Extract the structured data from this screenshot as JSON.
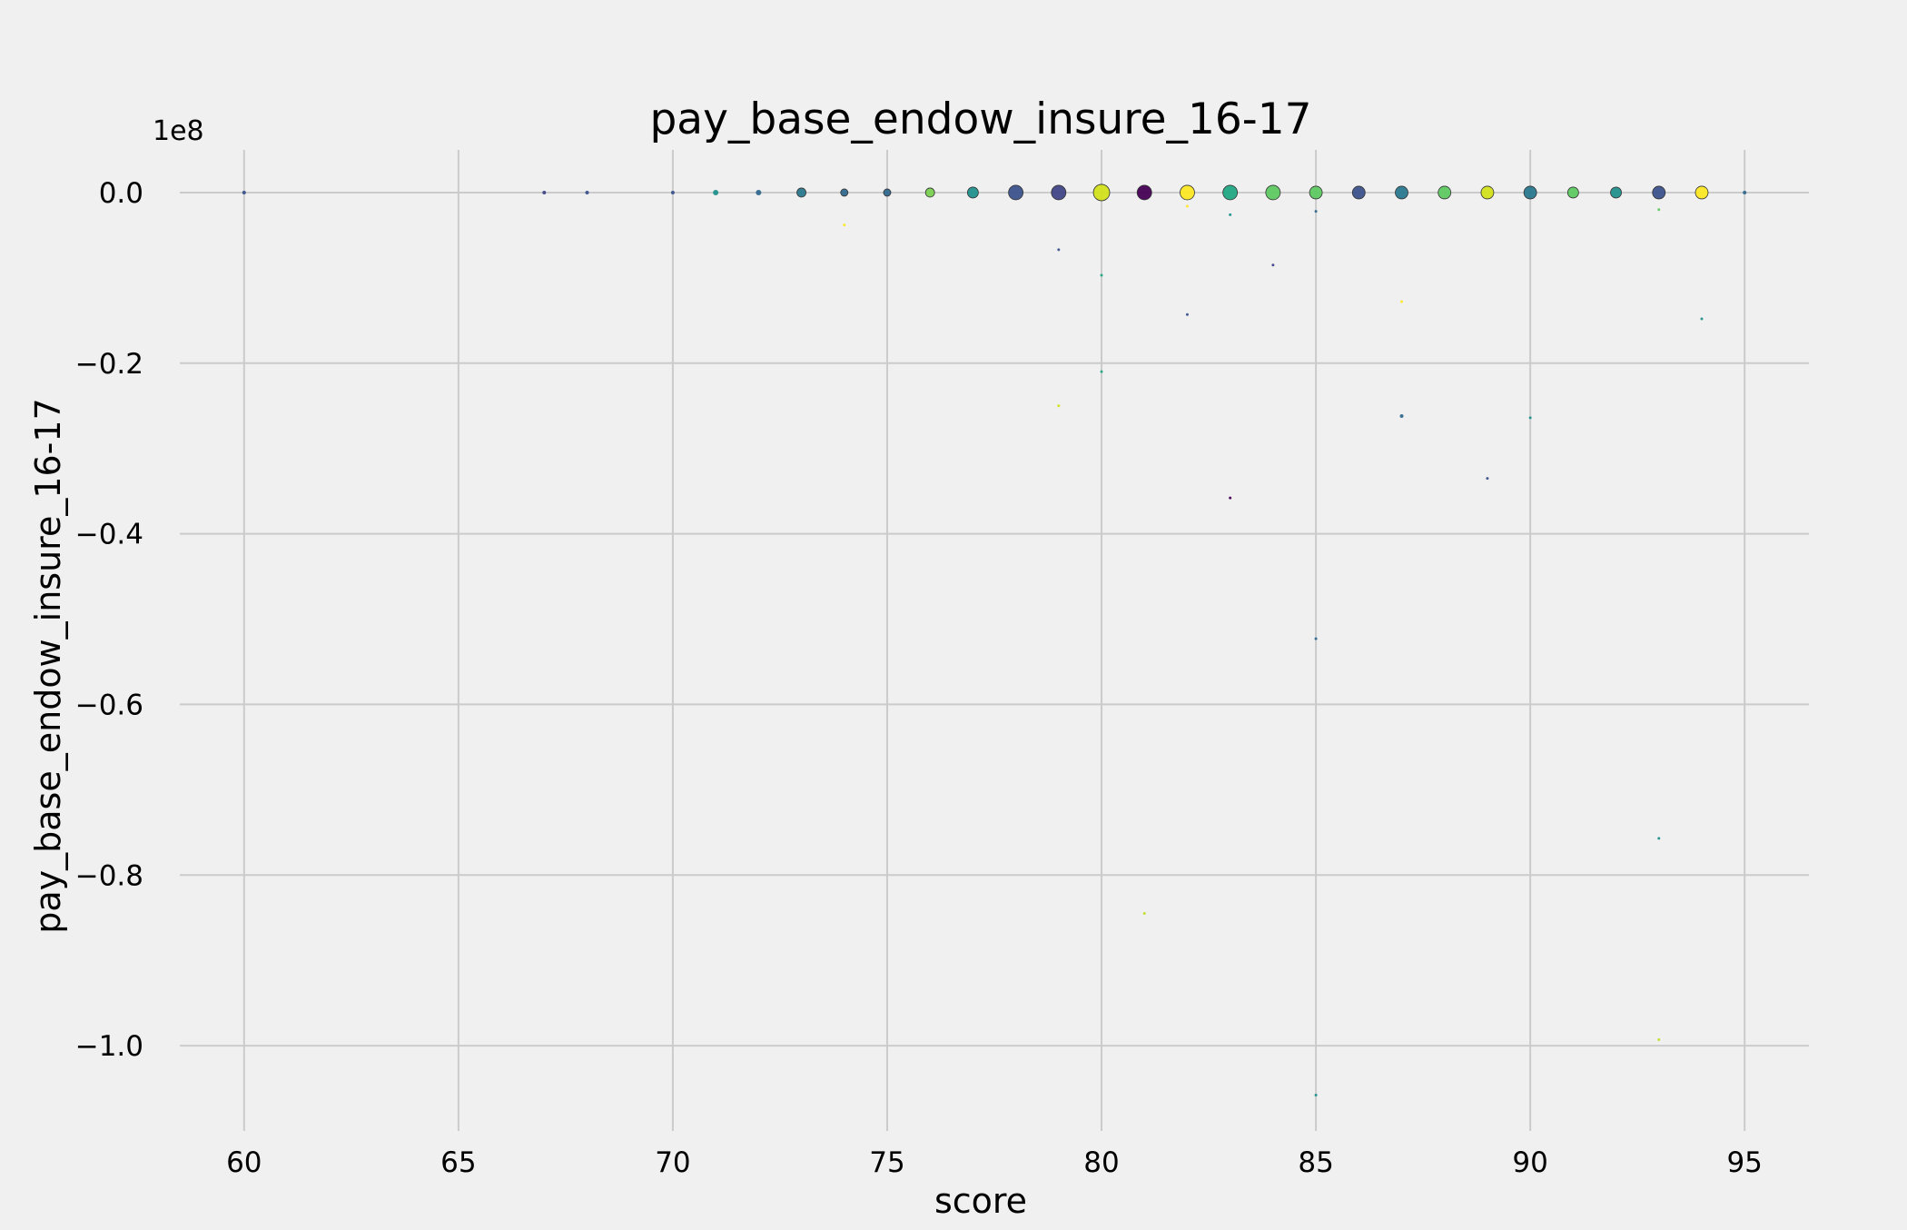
{
  "chart_data": {
    "type": "scatter",
    "title": "pay_base_endow_insure_16-17",
    "xlabel": "score",
    "ylabel": "pay_base_endow_insure_16-17",
    "y_offset_label": "1e8",
    "xlim": [
      58.5,
      96.5
    ],
    "ylim": [
      -1.1,
      0.05
    ],
    "x_ticks": [
      60,
      65,
      70,
      75,
      80,
      85,
      90,
      95
    ],
    "x_tick_labels": [
      "60",
      "65",
      "70",
      "75",
      "80",
      "85",
      "90",
      "95"
    ],
    "y_ticks": [
      0.0,
      -0.2,
      -0.4,
      -0.6,
      -0.8,
      -1.0
    ],
    "y_tick_labels": [
      "0.0",
      "−0.2",
      "−0.4",
      "−0.6",
      "−0.8",
      "−1.0"
    ],
    "grid": true,
    "background": "#f0f0f0",
    "grid_color": "#cbcbcb",
    "colormap": "viridis",
    "points": [
      {
        "x": 60,
        "y": 0.0,
        "size": 2,
        "color": "#3b528b"
      },
      {
        "x": 67,
        "y": 0.0,
        "size": 2,
        "color": "#414487"
      },
      {
        "x": 68,
        "y": 0.0,
        "size": 2,
        "color": "#3b528b"
      },
      {
        "x": 70,
        "y": 0.0,
        "size": 2,
        "color": "#3b528b"
      },
      {
        "x": 71,
        "y": 0.0,
        "size": 3,
        "color": "#21918c"
      },
      {
        "x": 72,
        "y": 0.0,
        "size": 3,
        "color": "#31688e"
      },
      {
        "x": 73,
        "y": 0.0,
        "size": 5,
        "color": "#2a788e"
      },
      {
        "x": 74,
        "y": 0.0,
        "size": 4,
        "color": "#31688e"
      },
      {
        "x": 74,
        "y": -0.038,
        "size": 1.5,
        "color": "#fde725"
      },
      {
        "x": 75,
        "y": 0.0,
        "size": 4,
        "color": "#31688e"
      },
      {
        "x": 76,
        "y": 0.0,
        "size": 5,
        "color": "#7ad151"
      },
      {
        "x": 77,
        "y": 0.0,
        "size": 6,
        "color": "#21918c"
      },
      {
        "x": 78,
        "y": 0.0,
        "size": 8,
        "color": "#3b528b"
      },
      {
        "x": 79,
        "y": 0.0,
        "size": 8,
        "color": "#414487"
      },
      {
        "x": 79,
        "y": -0.067,
        "size": 1.5,
        "color": "#3b528b"
      },
      {
        "x": 79,
        "y": -0.25,
        "size": 1.5,
        "color": "#d2e21b"
      },
      {
        "x": 80,
        "y": 0.0,
        "size": 9,
        "color": "#d2e21b"
      },
      {
        "x": 80,
        "y": -0.097,
        "size": 1.5,
        "color": "#22a884"
      },
      {
        "x": 80,
        "y": -0.21,
        "size": 1.5,
        "color": "#22a884"
      },
      {
        "x": 81,
        "y": 0.0,
        "size": 8,
        "color": "#440154"
      },
      {
        "x": 81,
        "y": -0.845,
        "size": 1.5,
        "color": "#bddf26"
      },
      {
        "x": 82,
        "y": 0.0,
        "size": 8,
        "color": "#fde725"
      },
      {
        "x": 82,
        "y": -0.016,
        "size": 1.5,
        "color": "#fde725"
      },
      {
        "x": 82,
        "y": -0.143,
        "size": 1.5,
        "color": "#3b528b"
      },
      {
        "x": 83,
        "y": 0.0,
        "size": 8,
        "color": "#22a884"
      },
      {
        "x": 83,
        "y": -0.026,
        "size": 1.5,
        "color": "#21918c"
      },
      {
        "x": 83,
        "y": -0.358,
        "size": 1.5,
        "color": "#440154"
      },
      {
        "x": 84,
        "y": 0.0,
        "size": 8,
        "color": "#5ec962"
      },
      {
        "x": 84,
        "y": -0.085,
        "size": 1.5,
        "color": "#414487"
      },
      {
        "x": 85,
        "y": 0.0,
        "size": 7,
        "color": "#5ec962"
      },
      {
        "x": 85,
        "y": -0.022,
        "size": 1.5,
        "color": "#31688e"
      },
      {
        "x": 85,
        "y": -0.523,
        "size": 1.5,
        "color": "#31688e"
      },
      {
        "x": 85,
        "y": -1.058,
        "size": 1.5,
        "color": "#21918c"
      },
      {
        "x": 86,
        "y": 0.0,
        "size": 7,
        "color": "#3b528b"
      },
      {
        "x": 87,
        "y": 0.0,
        "size": 7,
        "color": "#2a788e"
      },
      {
        "x": 87,
        "y": -0.128,
        "size": 1.5,
        "color": "#fde725"
      },
      {
        "x": 87,
        "y": -0.262,
        "size": 2,
        "color": "#31688e"
      },
      {
        "x": 88,
        "y": 0.0,
        "size": 7,
        "color": "#5ec962"
      },
      {
        "x": 89,
        "y": 0.0,
        "size": 7,
        "color": "#d2e21b"
      },
      {
        "x": 89,
        "y": -0.335,
        "size": 1.5,
        "color": "#3b528b"
      },
      {
        "x": 90,
        "y": 0.0,
        "size": 7,
        "color": "#2a788e"
      },
      {
        "x": 90,
        "y": -0.264,
        "size": 1.5,
        "color": "#21918c"
      },
      {
        "x": 91,
        "y": 0.0,
        "size": 6,
        "color": "#5ec962"
      },
      {
        "x": 92,
        "y": 0.0,
        "size": 6,
        "color": "#21918c"
      },
      {
        "x": 93,
        "y": 0.0,
        "size": 7,
        "color": "#3b528b"
      },
      {
        "x": 93,
        "y": -0.02,
        "size": 1.5,
        "color": "#5ec962"
      },
      {
        "x": 93,
        "y": -0.757,
        "size": 1.5,
        "color": "#21918c"
      },
      {
        "x": 93,
        "y": -0.993,
        "size": 1.5,
        "color": "#bddf26"
      },
      {
        "x": 94,
        "y": 0.0,
        "size": 7,
        "color": "#fde725"
      },
      {
        "x": 94,
        "y": -0.148,
        "size": 1.5,
        "color": "#21918c"
      },
      {
        "x": 95,
        "y": 0.0,
        "size": 2,
        "color": "#31688e"
      }
    ]
  }
}
